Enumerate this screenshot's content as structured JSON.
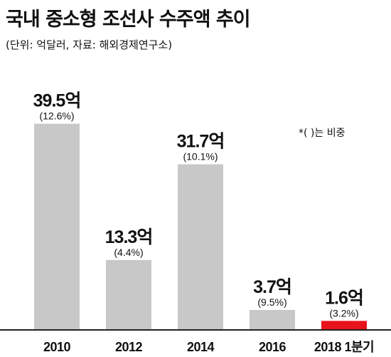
{
  "title": "국내 중소형 조선사 수주액 추이",
  "subtitle": "(단위: 억달러, 자료: 해외경제연구소)",
  "note": "*( )는 비중",
  "colors": {
    "bar": "#c8c8c8",
    "highlight": "#e8141b",
    "axis": "#222222",
    "text": "#111111"
  },
  "chart_data": {
    "type": "bar",
    "categories": [
      "2010",
      "2012",
      "2014",
      "2016",
      "2018 1분기"
    ],
    "values": [
      39.5,
      13.3,
      31.7,
      3.7,
      1.6
    ],
    "value_labels": [
      "39.5억",
      "13.3억",
      "31.7억",
      "3.7억",
      "1.6억"
    ],
    "share_labels": [
      "(12.6%)",
      "(4.4%)",
      "(10.1%)",
      "(9.5%)",
      "(3.2%)"
    ],
    "highlight_index": 4,
    "title": "국내 중소형 조선사 수주액 추이",
    "ylabel": "",
    "xlabel": ""
  }
}
